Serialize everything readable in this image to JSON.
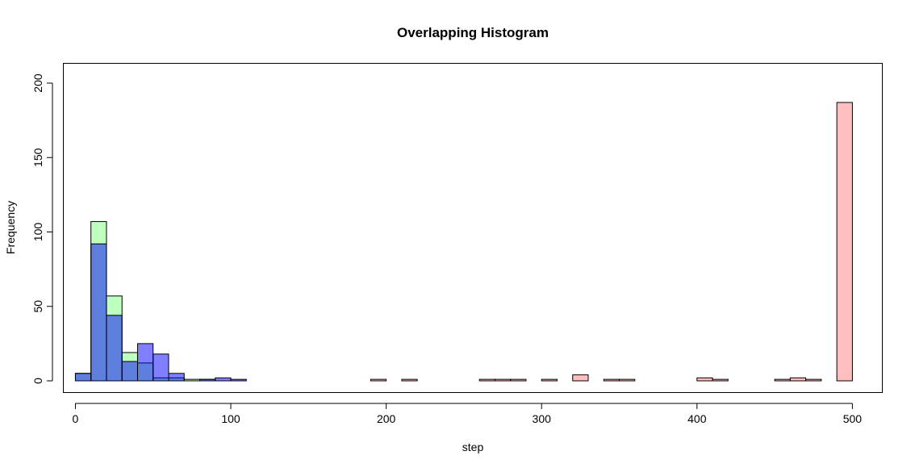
{
  "chart_data": {
    "type": "bar",
    "title": "Overlapping Histogram",
    "xlabel": "step",
    "ylabel": "Frequency",
    "xlim": [
      -7.5,
      519
    ],
    "ylim": [
      0,
      200
    ],
    "x_ticks": [
      0,
      100,
      200,
      300,
      400,
      500
    ],
    "y_ticks": [
      0,
      50,
      100,
      150,
      200
    ],
    "bin_width": 10,
    "series": [
      {
        "color": "#FF808080",
        "bins": [
          {
            "x0": 190,
            "x1": 200,
            "count": 1
          },
          {
            "x0": 210,
            "x1": 220,
            "count": 1
          },
          {
            "x0": 220,
            "x1": 230,
            "count": 0
          },
          {
            "x0": 230,
            "x1": 240,
            "count": 0
          },
          {
            "x0": 240,
            "x1": 250,
            "count": 0
          },
          {
            "x0": 250,
            "x1": 260,
            "count": 0
          },
          {
            "x0": 260,
            "x1": 270,
            "count": 1
          },
          {
            "x0": 270,
            "x1": 280,
            "count": 1
          },
          {
            "x0": 280,
            "x1": 290,
            "count": 1
          },
          {
            "x0": 290,
            "x1": 300,
            "count": 0
          },
          {
            "x0": 300,
            "x1": 310,
            "count": 1
          },
          {
            "x0": 310,
            "x1": 320,
            "count": 0
          },
          {
            "x0": 320,
            "x1": 330,
            "count": 4
          },
          {
            "x0": 330,
            "x1": 340,
            "count": 0
          },
          {
            "x0": 340,
            "x1": 350,
            "count": 1
          },
          {
            "x0": 350,
            "x1": 360,
            "count": 1
          },
          {
            "x0": 360,
            "x1": 370,
            "count": 0
          },
          {
            "x0": 370,
            "x1": 380,
            "count": 0
          },
          {
            "x0": 380,
            "x1": 390,
            "count": 0
          },
          {
            "x0": 390,
            "x1": 400,
            "count": 0
          },
          {
            "x0": 400,
            "x1": 410,
            "count": 2
          },
          {
            "x0": 410,
            "x1": 420,
            "count": 1
          },
          {
            "x0": 420,
            "x1": 430,
            "count": 0
          },
          {
            "x0": 430,
            "x1": 440,
            "count": 0
          },
          {
            "x0": 440,
            "x1": 450,
            "count": 0
          },
          {
            "x0": 450,
            "x1": 460,
            "count": 1
          },
          {
            "x0": 460,
            "x1": 470,
            "count": 2
          },
          {
            "x0": 470,
            "x1": 480,
            "count": 1
          },
          {
            "x0": 480,
            "x1": 490,
            "count": 0
          },
          {
            "x0": 490,
            "x1": 500,
            "count": 187
          }
        ]
      },
      {
        "color": "#80FF8080",
        "bins": [
          {
            "x0": 0,
            "x1": 10,
            "count": 5
          },
          {
            "x0": 10,
            "x1": 20,
            "count": 107
          },
          {
            "x0": 20,
            "x1": 30,
            "count": 57
          },
          {
            "x0": 30,
            "x1": 40,
            "count": 19
          },
          {
            "x0": 40,
            "x1": 50,
            "count": 12
          },
          {
            "x0": 50,
            "x1": 60,
            "count": 2
          },
          {
            "x0": 60,
            "x1": 70,
            "count": 2
          },
          {
            "x0": 70,
            "x1": 80,
            "count": 1
          },
          {
            "x0": 80,
            "x1": 90,
            "count": 1
          },
          {
            "x0": 90,
            "x1": 100,
            "count": 0
          }
        ]
      },
      {
        "color": "#0000FF80",
        "bins": [
          {
            "x0": 0,
            "x1": 10,
            "count": 5
          },
          {
            "x0": 10,
            "x1": 20,
            "count": 92
          },
          {
            "x0": 20,
            "x1": 30,
            "count": 44
          },
          {
            "x0": 30,
            "x1": 40,
            "count": 13
          },
          {
            "x0": 40,
            "x1": 50,
            "count": 25
          },
          {
            "x0": 50,
            "x1": 60,
            "count": 18
          },
          {
            "x0": 60,
            "x1": 70,
            "count": 5
          },
          {
            "x0": 70,
            "x1": 80,
            "count": 0
          },
          {
            "x0": 80,
            "x1": 90,
            "count": 1
          },
          {
            "x0": 90,
            "x1": 100,
            "count": 2
          },
          {
            "x0": 100,
            "x1": 110,
            "count": 1
          }
        ]
      }
    ],
    "grid": false,
    "legend": "none",
    "axis_color": "#000000",
    "bar_border_color": "#000000"
  }
}
